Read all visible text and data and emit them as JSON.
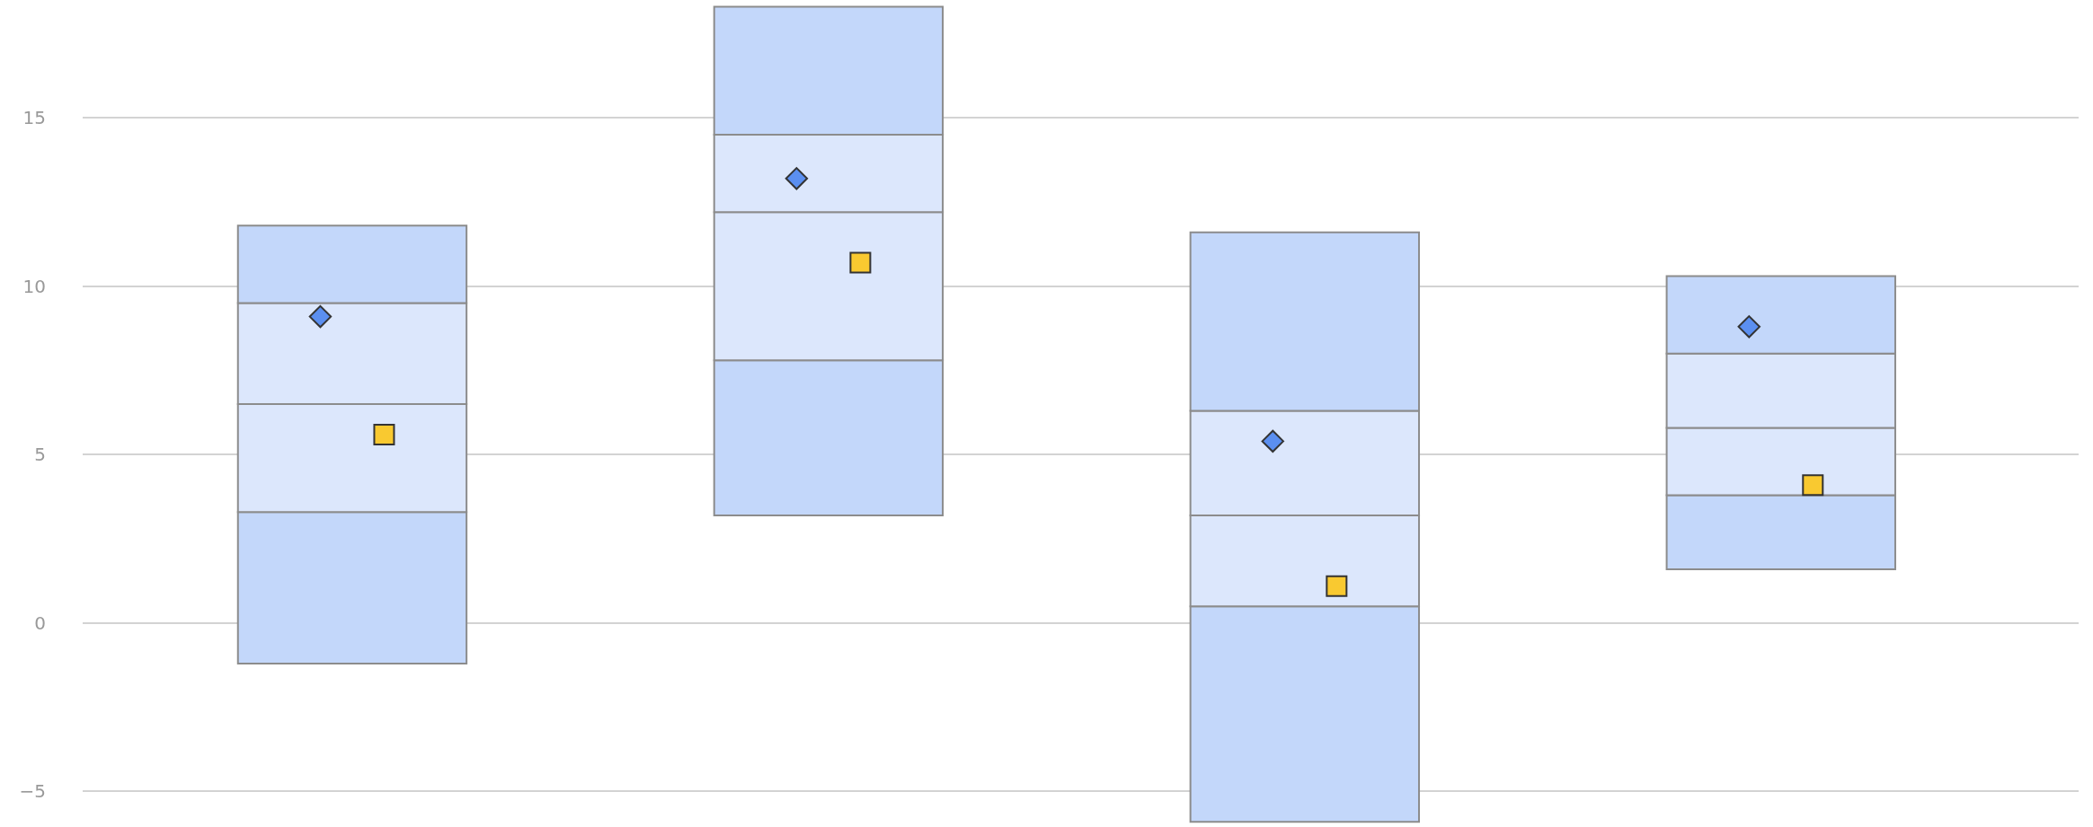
{
  "chart_data": {
    "type": "bar",
    "categories": [
      null,
      null,
      null,
      null
    ],
    "series": [
      {
        "color": "#c3d7fa",
        "base": [
          -1.2,
          3.2,
          -5.9,
          1.6
        ],
        "values": [
          4.5,
          4.6,
          6.4,
          2.2
        ]
      },
      {
        "color": "#dce7fc",
        "base": [
          3.3,
          7.8,
          0.5,
          3.8
        ],
        "values": [
          3.2,
          4.4,
          2.7,
          2.0
        ]
      },
      {
        "color": "#dce7fc",
        "base": [
          6.5,
          12.2,
          3.2,
          5.8
        ],
        "values": [
          3.0,
          2.3,
          3.1,
          2.2
        ]
      },
      {
        "color": "#c3d7fa",
        "base": [
          9.5,
          14.5,
          6.3,
          8.0
        ],
        "values": [
          2.3,
          3.8,
          5.3,
          2.3
        ]
      },
      {
        "type": "scatter",
        "marker": "diamond",
        "color": "#5b8ff0",
        "values": [
          9.1,
          13.2,
          5.4,
          8.8
        ]
      },
      {
        "type": "scatter",
        "marker": "square",
        "color": "#f9c930",
        "values": [
          5.6,
          10.7,
          1.1,
          4.1
        ]
      }
    ],
    "ylim": [
      -6,
      18.5
    ],
    "yticks": [
      -5,
      0,
      5,
      10,
      15
    ],
    "grid": "y"
  }
}
